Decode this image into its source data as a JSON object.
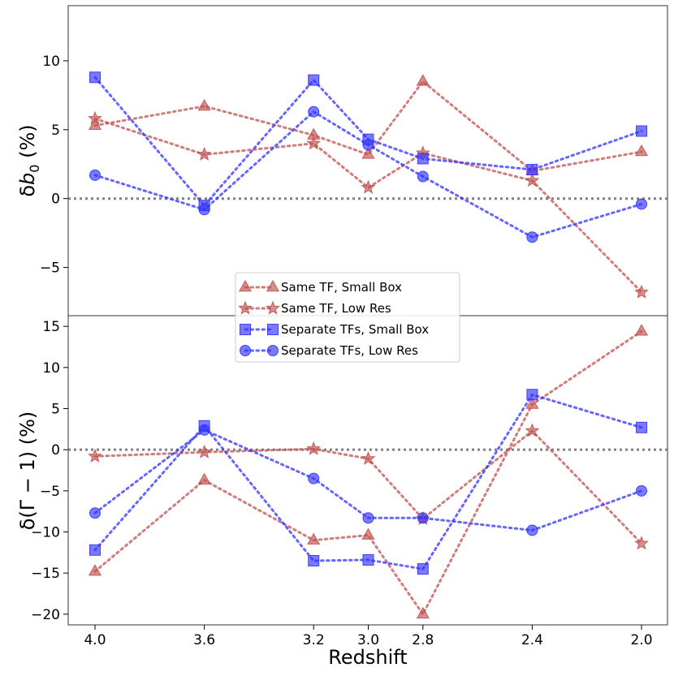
{
  "chart_data": [
    {
      "type": "line",
      "panel": "top",
      "ylabel_prefix": "δ",
      "ylabel_var": "b",
      "ylabel_sub": "0",
      "ylabel_suffix": " (%)",
      "ylim": [
        -8.5,
        14
      ],
      "yticks": [
        10,
        5,
        0,
        -5
      ],
      "ytick_labels": [
        "10",
        "5",
        "0",
        "−5"
      ],
      "reference_line": 0,
      "x": [
        4.0,
        3.6,
        3.2,
        3.0,
        2.8,
        2.4,
        2.0
      ],
      "series": [
        {
          "name": "Same TF, Small Box",
          "marker": "triangle",
          "color": "#c0504d",
          "values": [
            5.3,
            6.7,
            4.6,
            3.2,
            8.5,
            2.0,
            3.4
          ]
        },
        {
          "name": "Same TF, Low Res",
          "marker": "star",
          "color": "#c0504d",
          "values": [
            5.8,
            3.2,
            4.0,
            0.8,
            3.3,
            1.3,
            -6.8
          ]
        },
        {
          "name": "Separate TFs, Small Box",
          "marker": "square",
          "color": "#3333ff",
          "values": [
            8.8,
            -0.5,
            8.6,
            4.3,
            2.9,
            2.1,
            4.9
          ]
        },
        {
          "name": "Separate TFs, Low Res",
          "marker": "circle",
          "color": "#3333ff",
          "values": [
            1.7,
            -0.8,
            6.3,
            3.9,
            1.6,
            -2.8,
            -0.4
          ]
        }
      ]
    },
    {
      "type": "line",
      "panel": "bottom",
      "ylabel": "δ(Γ − 1) (%)",
      "ylim": [
        -21.3,
        16.3
      ],
      "yticks": [
        15,
        10,
        5,
        0,
        -5,
        -10,
        -15,
        -20
      ],
      "ytick_labels": [
        "15",
        "10",
        "5",
        "0",
        "−5",
        "−10",
        "−15",
        "−20"
      ],
      "reference_line": 0,
      "x": [
        4.0,
        3.6,
        3.2,
        3.0,
        2.8,
        2.4,
        2.0
      ],
      "xlabel": "Redshift",
      "xtick_labels": [
        "4.0",
        "3.6",
        "3.2",
        "3.0",
        "2.8",
        "2.4",
        "2.0"
      ],
      "series": [
        {
          "name": "Same TF, Small Box",
          "marker": "triangle",
          "color": "#c0504d",
          "values": [
            -14.8,
            -3.7,
            -11.0,
            -10.4,
            -20.0,
            5.5,
            14.4
          ]
        },
        {
          "name": "Same TF, Low Res",
          "marker": "star",
          "color": "#c0504d",
          "values": [
            -0.8,
            -0.3,
            0.1,
            -1.1,
            -8.4,
            2.3,
            -11.4
          ]
        },
        {
          "name": "Separate TFs, Small Box",
          "marker": "square",
          "color": "#3333ff",
          "values": [
            -12.2,
            2.9,
            -13.5,
            -13.4,
            -14.5,
            6.7,
            2.7
          ]
        },
        {
          "name": "Separate TFs, Low Res",
          "marker": "circle",
          "color": "#3333ff",
          "values": [
            -7.7,
            2.4,
            -3.5,
            -8.3,
            -8.3,
            -9.8,
            -5.0
          ]
        }
      ]
    }
  ],
  "legend": {
    "placement": "lower-center of top panel",
    "entries": [
      "Same TF, Small Box",
      "Same TF, Low Res",
      "Separate TFs, Small Box",
      "Separate TFs, Low Res"
    ]
  }
}
